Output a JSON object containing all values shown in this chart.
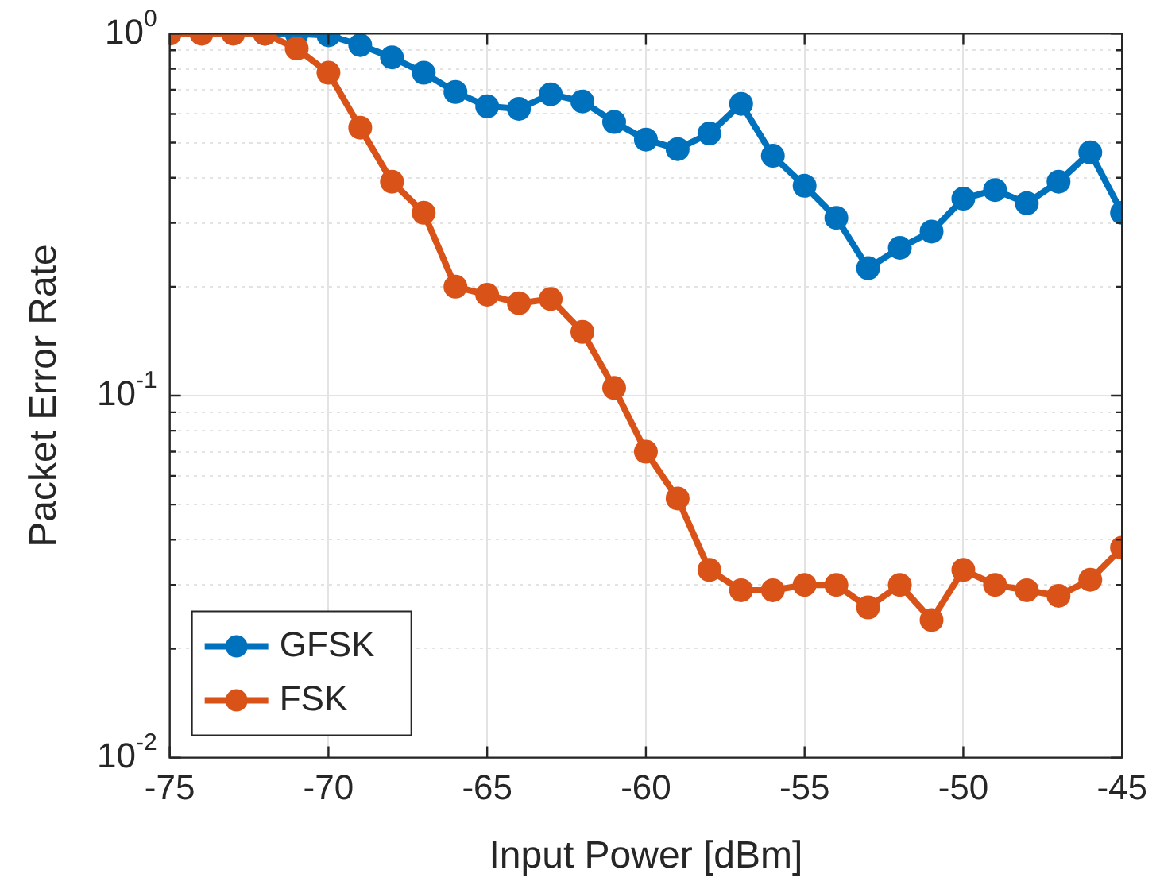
{
  "chart_data": {
    "type": "line",
    "xlabel": "Input Power [dBm]",
    "ylabel": "Packet Error Rate",
    "x": [
      -75,
      -74,
      -73,
      -72,
      -71,
      -70,
      -69,
      -68,
      -67,
      -66,
      -65,
      -64,
      -63,
      -62,
      -61,
      -60,
      -59,
      -58,
      -57,
      -56,
      -55,
      -54,
      -53,
      -52,
      -51,
      -50,
      -49,
      -48,
      -47,
      -46,
      -45
    ],
    "series": [
      {
        "name": "GFSK",
        "color": "#0072bd",
        "values": [
          null,
          null,
          null,
          1,
          1,
          0.99,
          0.93,
          0.86,
          0.78,
          0.69,
          0.63,
          0.62,
          0.68,
          0.65,
          0.57,
          0.51,
          0.48,
          0.53,
          0.64,
          0.46,
          0.38,
          0.31,
          0.225,
          0.256,
          0.284,
          0.35,
          0.37,
          0.34,
          0.39,
          0.47,
          0.32
        ]
      },
      {
        "name": "FSK",
        "color": "#d95319",
        "values": [
          1,
          1,
          1,
          1,
          0.91,
          0.78,
          0.55,
          0.39,
          0.32,
          0.2,
          0.19,
          0.18,
          0.185,
          0.15,
          0.105,
          0.07,
          0.052,
          0.033,
          0.029,
          0.029,
          0.03,
          0.03,
          0.026,
          0.03,
          0.024,
          0.033,
          0.03,
          0.029,
          0.028,
          0.031,
          0.038
        ]
      }
    ],
    "log": "y",
    "xlim": [
      -75,
      -45
    ],
    "xticks": [
      -75,
      -70,
      -65,
      -60,
      -55,
      -50,
      -45
    ],
    "ylim": [
      0.01,
      1
    ],
    "yticks": [
      {
        "value": 0.01,
        "label": "10$^{-2}$"
      },
      {
        "value": 0.02,
        "label": null
      },
      {
        "value": 0.03,
        "label": null
      },
      {
        "value": 0.04,
        "label": null
      },
      {
        "value": 0.05,
        "label": null
      },
      {
        "value": 0.06,
        "label": null
      },
      {
        "value": 0.07,
        "label": null
      },
      {
        "value": 0.08,
        "label": null
      },
      {
        "value": 0.09,
        "label": null
      },
      {
        "value": 0.1,
        "label": "10$^{-1}$"
      },
      {
        "value": 0.2,
        "label": null
      },
      {
        "value": 0.3,
        "label": null
      },
      {
        "value": 0.4,
        "label": null
      },
      {
        "value": 0.5,
        "label": null
      },
      {
        "value": 0.6,
        "label": null
      },
      {
        "value": 0.7,
        "label": null
      },
      {
        "value": 0.8,
        "label": null
      },
      {
        "value": 0.9,
        "label": null
      },
      {
        "value": 1,
        "label": "10$^{0}$"
      }
    ],
    "grid": true,
    "legend": "bottom left",
    "marker": "circle",
    "line_style": "solid"
  }
}
